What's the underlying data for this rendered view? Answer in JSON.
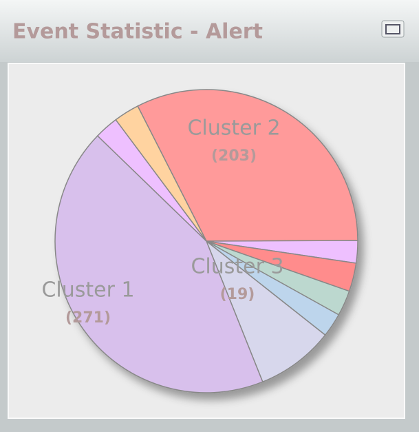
{
  "window": {
    "title": "Event Statistic - Alert"
  },
  "chart_data": {
    "type": "pie",
    "categories": [
      "Cluster 2",
      null,
      "Cluster 3",
      null,
      null,
      null,
      "Cluster 1",
      null,
      null
    ],
    "values": [
      203,
      15,
      19,
      17,
      16,
      52,
      271,
      16,
      17
    ],
    "value_labels": [
      "(203)",
      null,
      "(19)",
      null,
      null,
      null,
      "(271)",
      null,
      null
    ],
    "colors": [
      "#ff9a9a",
      "#eec0ff",
      "#ff8c8c",
      "#bcd8cf",
      "#bdd5ec",
      "#d7d7ec",
      "#d8c0ec",
      "#eec0ff",
      "#ffd3a0"
    ]
  }
}
